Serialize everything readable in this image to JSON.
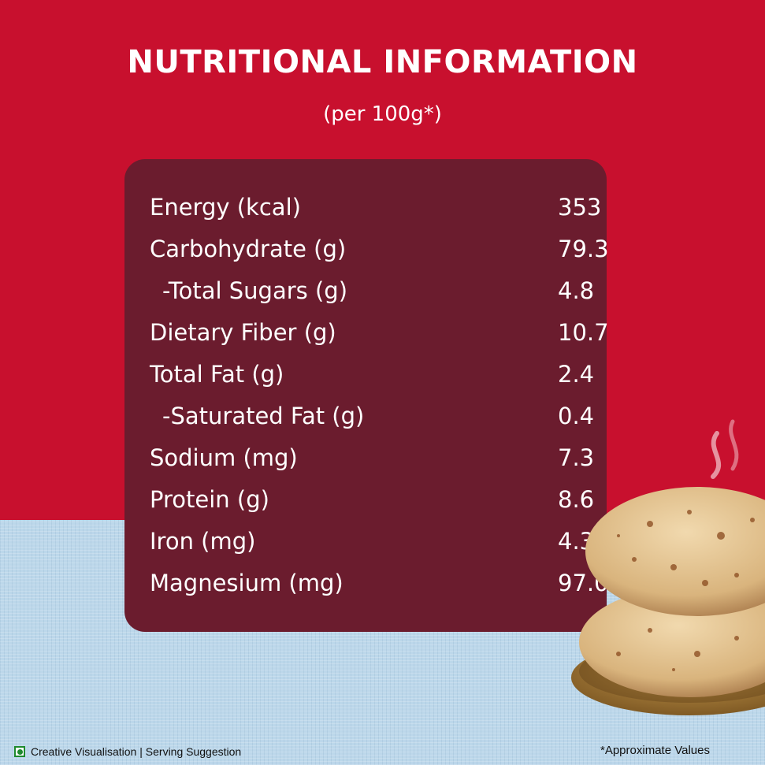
{
  "header": {
    "title": "NUTRITIONAL INFORMATION",
    "subtitle": "(per 100g*)"
  },
  "nutrition": {
    "rows": [
      {
        "label": "Energy (kcal)",
        "value": "353"
      },
      {
        "label": "Carbohydrate (g)",
        "value": "79.3"
      },
      {
        "label": "-Total Sugars (g)",
        "value": "4.8"
      },
      {
        "label": "Dietary Fiber (g)",
        "value": "10.7"
      },
      {
        "label": "Total Fat (g)",
        "value": "2.4"
      },
      {
        "label": "-Saturated Fat (g)",
        "value": "0.4"
      },
      {
        "label": "Sodium (mg)",
        "value": "7.3"
      },
      {
        "label": "Protein (g)",
        "value": "8.6"
      },
      {
        "label": "Iron (mg)",
        "value": "4.3"
      },
      {
        "label": "Magnesium (mg)",
        "value": "97.0"
      }
    ]
  },
  "footer": {
    "left_note": "Creative Visualisation | Serving Suggestion",
    "right_note": "*Approximate Values",
    "veg_mark_icon": "veg-symbol-icon"
  },
  "colors": {
    "top_background": "#c8102e",
    "panel": "#6b1c2e",
    "bottom_background": "#bcd7ea",
    "veg_green": "#1e8a2e"
  },
  "image": {
    "icon": "roti-stack-illustration"
  }
}
